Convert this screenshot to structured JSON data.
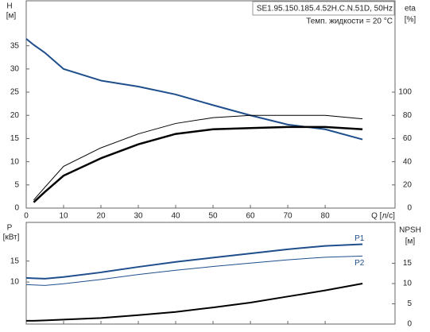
{
  "chart_data": [
    {
      "type": "line",
      "title": "SE1.95.150.185.4.52H.C.N.51D, 50Hz",
      "subtitle": "Темп. жидкости = 20 °C",
      "y_label": "H",
      "y_unit": "[м]",
      "y2_label": "eta",
      "y2_unit": "[%]",
      "x_label": "Q [л/с]",
      "x": [
        0,
        2,
        5,
        10,
        20,
        30,
        40,
        50,
        60,
        70,
        80,
        90
      ],
      "xlim": [
        0,
        98.7
      ],
      "xticks": [
        0,
        10,
        20,
        30,
        40,
        50,
        60,
        70,
        80
      ],
      "ylim": [
        0,
        44.7
      ],
      "yticks": [
        0,
        5,
        10,
        15,
        20,
        25,
        30,
        35
      ],
      "y2lim": [
        0,
        178.8
      ],
      "y2ticks": [
        0,
        20,
        40,
        60,
        80,
        100
      ],
      "series": [
        {
          "color": "#1f4e8c",
          "width": 2,
          "values": [
            36.5,
            35.2,
            33.5,
            30,
            27.5,
            26.2,
            24.5,
            22.2,
            20,
            18,
            17,
            14.8
          ]
        },
        {
          "color": "#000000",
          "width": 1,
          "axis": "y2",
          "values": [
            null,
            7,
            18,
            36,
            52,
            64,
            73,
            78,
            80,
            80,
            80,
            77
          ]
        },
        {
          "color": "#000000",
          "width": 2.5,
          "axis": "y2",
          "values": [
            null,
            5,
            14,
            28,
            43,
            55,
            64,
            68,
            69,
            70,
            70,
            68
          ]
        }
      ]
    },
    {
      "type": "line",
      "y_label": "P",
      "y_unit": "[кВт]",
      "y2_label": "NPSH",
      "y2_unit": "[м]",
      "x": [
        0,
        2,
        5,
        10,
        20,
        30,
        40,
        50,
        60,
        70,
        80,
        90
      ],
      "xlim": [
        0,
        98.7
      ],
      "xticks": [
        0,
        10,
        20,
        30,
        40,
        50,
        60,
        70,
        80
      ],
      "ylim": [
        0,
        24.2
      ],
      "yticks": [
        10,
        15
      ],
      "y2lim": [
        0,
        25.1
      ],
      "y2ticks": [
        0,
        5,
        10,
        15
      ],
      "series": [
        {
          "name": "P1",
          "color": "#1f4e8c",
          "width": 2,
          "values": [
            11,
            10.9,
            10.8,
            11.2,
            12.3,
            13.6,
            14.8,
            15.8,
            16.8,
            17.8,
            18.6,
            19
          ]
        },
        {
          "name": "P2",
          "color": "#1f4e8c",
          "width": 1,
          "values": [
            9.4,
            9.3,
            9.2,
            9.6,
            10.6,
            11.8,
            12.8,
            13.7,
            14.5,
            15.3,
            15.9,
            16.2
          ]
        },
        {
          "color": "#000000",
          "width": 2,
          "axis": "y2",
          "values": [
            0.8,
            0.8,
            0.9,
            1.1,
            1.5,
            2.2,
            3,
            4.1,
            5.3,
            6.8,
            8.3,
            10
          ]
        }
      ]
    }
  ]
}
